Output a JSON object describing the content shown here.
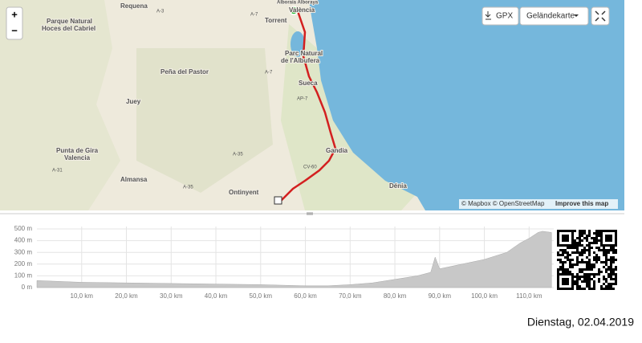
{
  "map": {
    "labels": [
      "Requena",
      "Parque Natural",
      "Hoces del Cabriel",
      "Peña del Pastor",
      "Juey",
      "Punta de Gira",
      "Valencia",
      "Almansa",
      "Ontinyent",
      "València",
      "Alboraia Alboraya",
      "Torrent",
      "Parc Natural",
      "de l'Albufera",
      "Sueca",
      "Gandia",
      "Dénia"
    ],
    "roads": [
      "A-3",
      "A-7",
      "AP-7",
      "A-35",
      "CV-60",
      "A-31",
      "A-35",
      "A-7"
    ],
    "attribution": "© Mapbox © OpenStreetMap",
    "improve": "Improve this map"
  },
  "controls": {
    "zoom_in": "+",
    "zoom_out": "−",
    "gpx": "GPX",
    "map_type": "Geländekarte"
  },
  "elevation": {
    "type": "area",
    "color": "#c8c8c8",
    "x": [
      0,
      10,
      20,
      30,
      40,
      50,
      55,
      60,
      65,
      70,
      75,
      80,
      85,
      88,
      89,
      90,
      95,
      100,
      105,
      108,
      110,
      112,
      113,
      115
    ],
    "values": [
      60,
      45,
      40,
      35,
      30,
      25,
      20,
      15,
      15,
      25,
      40,
      70,
      100,
      130,
      260,
      160,
      200,
      240,
      300,
      380,
      420,
      470,
      480,
      470
    ],
    "xlim": [
      0,
      115.5
    ],
    "ylim": [
      0,
      500
    ],
    "yticks": [
      {
        "value": 0,
        "label": "0 m"
      },
      {
        "value": 100,
        "label": "100 m"
      },
      {
        "value": 200,
        "label": "200 m"
      },
      {
        "value": 300,
        "label": "300 m"
      },
      {
        "value": 400,
        "label": "400 m"
      },
      {
        "value": 500,
        "label": "500 m"
      }
    ],
    "xticks": [
      {
        "value": 10,
        "label": "10,0 km"
      },
      {
        "value": 20,
        "label": "20,0 km"
      },
      {
        "value": 30,
        "label": "30,0 km"
      },
      {
        "value": 40,
        "label": "40,0 km"
      },
      {
        "value": 50,
        "label": "50,0 km"
      },
      {
        "value": 60,
        "label": "60,0 km"
      },
      {
        "value": 70,
        "label": "70,0 km"
      },
      {
        "value": 80,
        "label": "80,0 km"
      },
      {
        "value": 90,
        "label": "90,0 km"
      },
      {
        "value": 100,
        "label": "100,0 km"
      },
      {
        "value": 110,
        "label": "110,0 km"
      }
    ]
  },
  "date": "Dienstag, 02.04.2019"
}
